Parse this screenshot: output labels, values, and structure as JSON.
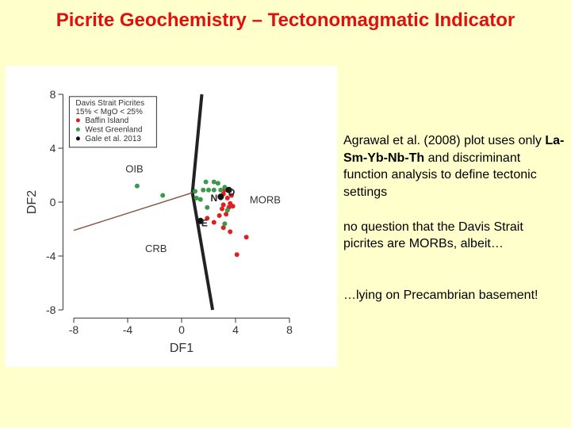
{
  "title": "Picrite Geochemistry – Tectonomagmatic Indicator",
  "paragraphs": [
    [
      "Agrawal et al. (2008) plot uses only",
      "La-Sm-Yb-Nb-Th",
      "and discriminant function analysis to define tectonic settings"
    ],
    [
      "no question that the Davis Strait picrites are MORBs, albeit…"
    ],
    [
      "…lying on Precambrian basement!"
    ]
  ],
  "chart_data": {
    "type": "scatter",
    "xlabel": "DF1",
    "ylabel": "DF2",
    "xlim": [
      -8.8,
      8.8
    ],
    "ylim": [
      -8.6,
      8.6
    ],
    "xticks": [
      -8,
      -4,
      0,
      4,
      8
    ],
    "yticks": [
      -8,
      -4,
      0,
      4,
      8
    ],
    "legend_title": [
      "Davis Strait Picrites",
      "15% < MgO < 25%"
    ],
    "legend_corner": "top-left",
    "series": [
      {
        "name": "Baffin Island",
        "color": "#e02020",
        "x": [
          3.1,
          3.4,
          3.6,
          3.1,
          3.5,
          3.8,
          3.0,
          3.2,
          2.8,
          1.9,
          2.4,
          3.1,
          3.6,
          4.8,
          4.1,
          3.3,
          3.7
        ],
        "values": [
          0.6,
          0.3,
          -0.1,
          -0.2,
          -0.4,
          -0.3,
          -0.5,
          0.9,
          -1.0,
          -1.2,
          -1.5,
          -1.9,
          -2.2,
          -2.6,
          -3.9,
          -0.9,
          0.5
        ]
      },
      {
        "name": "West Greenland",
        "color": "#3a9a4a",
        "x": [
          -3.3,
          -1.4,
          1.1,
          1.8,
          2.4,
          2.7,
          1.6,
          2.0,
          2.4,
          2.9,
          3.2,
          1.0,
          1.4,
          1.9,
          3.2,
          3.4,
          2.9
        ],
        "values": [
          1.2,
          0.5,
          0.3,
          1.5,
          1.5,
          1.4,
          0.9,
          0.9,
          0.9,
          0.9,
          1.1,
          0.8,
          0.2,
          -0.4,
          -1.6,
          -0.6,
          0.3
        ]
      },
      {
        "name": "Gale et al. 2013",
        "color": "#111111",
        "x": [
          2.9,
          3.5,
          1.4
        ],
        "values": [
          0.4,
          0.9,
          -1.4
        ]
      }
    ],
    "boundaries": [
      {
        "x": [
          1.5,
          0.8,
          2.3
        ],
        "y": [
          8,
          0.7,
          -8
        ],
        "color": "#222222"
      },
      {
        "x": [
          -8,
          0.8
        ],
        "y": [
          -2.1,
          0.7
        ],
        "color": "#8b5a4a"
      }
    ],
    "field_labels": [
      {
        "text": "OIB",
        "x": -3.5,
        "y": 2.5
      },
      {
        "text": "MORB",
        "x": 6.2,
        "y": 0.2
      },
      {
        "text": "CRB",
        "x": -1.9,
        "y": -3.4
      }
    ],
    "point_labels": [
      {
        "text": "N",
        "x": 2.4,
        "y": 0.35
      },
      {
        "text": "D",
        "x": 3.7,
        "y": 0.8
      },
      {
        "text": "E",
        "x": 1.7,
        "y": -1.5
      }
    ]
  }
}
